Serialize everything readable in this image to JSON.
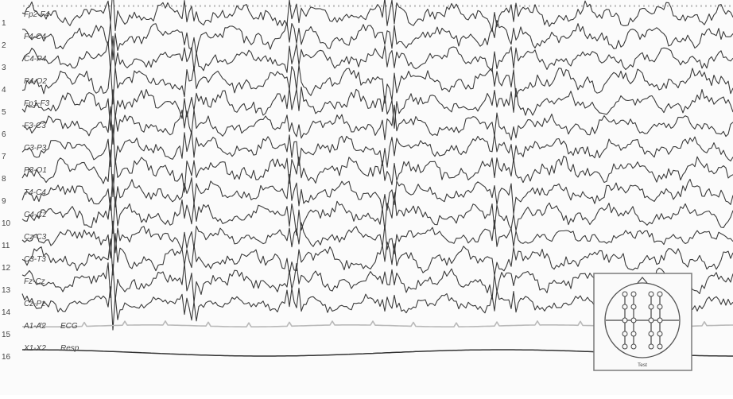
{
  "channels": [
    {
      "num": "1",
      "label": "Fp2-F4"
    },
    {
      "num": "2",
      "label": "F4-C4"
    },
    {
      "num": "3",
      "label": "C4-P4"
    },
    {
      "num": "4",
      "label": "P4-O2"
    },
    {
      "num": "5",
      "label": "Fp1-F3"
    },
    {
      "num": "6",
      "label": "F3-C3"
    },
    {
      "num": "7",
      "label": "C3-P3"
    },
    {
      "num": "8",
      "label": "P3-O1"
    },
    {
      "num": "9",
      "label": "T4-C4"
    },
    {
      "num": "10",
      "label": "C4-Cz"
    },
    {
      "num": "11",
      "label": "Cz-C3"
    },
    {
      "num": "12",
      "label": "C3-T3"
    },
    {
      "num": "13",
      "label": "Fz-Cz"
    },
    {
      "num": "14",
      "label": "Cz-Pz"
    },
    {
      "num": "15",
      "label": "A1-A2",
      "extra": "ECG"
    },
    {
      "num": "16",
      "label": "X1-X2",
      "extra": "Resp"
    }
  ],
  "montage_inset": {
    "caption": "Test"
  }
}
